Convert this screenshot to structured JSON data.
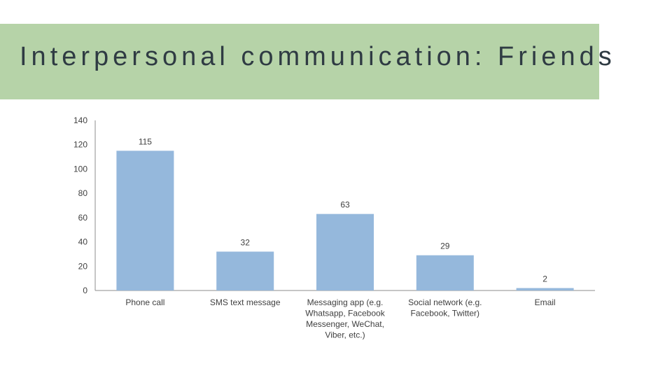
{
  "slide": {
    "title": "Interpersonal communication: Friends"
  },
  "colors": {
    "title_band": "#b6d3a8",
    "bar": "#95b8dc",
    "axis": "#8c8c8c"
  },
  "chart_data": {
    "type": "bar",
    "categories": [
      [
        "Phone call"
      ],
      [
        "SMS text message"
      ],
      [
        "Messaging app (e.g.",
        "Whatsapp, Facebook",
        "Messenger, WeChat,",
        "Viber, etc.)"
      ],
      [
        "Social network (e.g.",
        "Facebook, Twitter)"
      ],
      [
        "Email"
      ]
    ],
    "values": [
      115,
      32,
      63,
      29,
      2
    ],
    "ylim": [
      0,
      140
    ],
    "yticks": [
      0,
      20,
      40,
      60,
      80,
      100,
      120,
      140
    ],
    "grid": false,
    "data_labels": true,
    "title": "",
    "xlabel": "",
    "ylabel": ""
  }
}
